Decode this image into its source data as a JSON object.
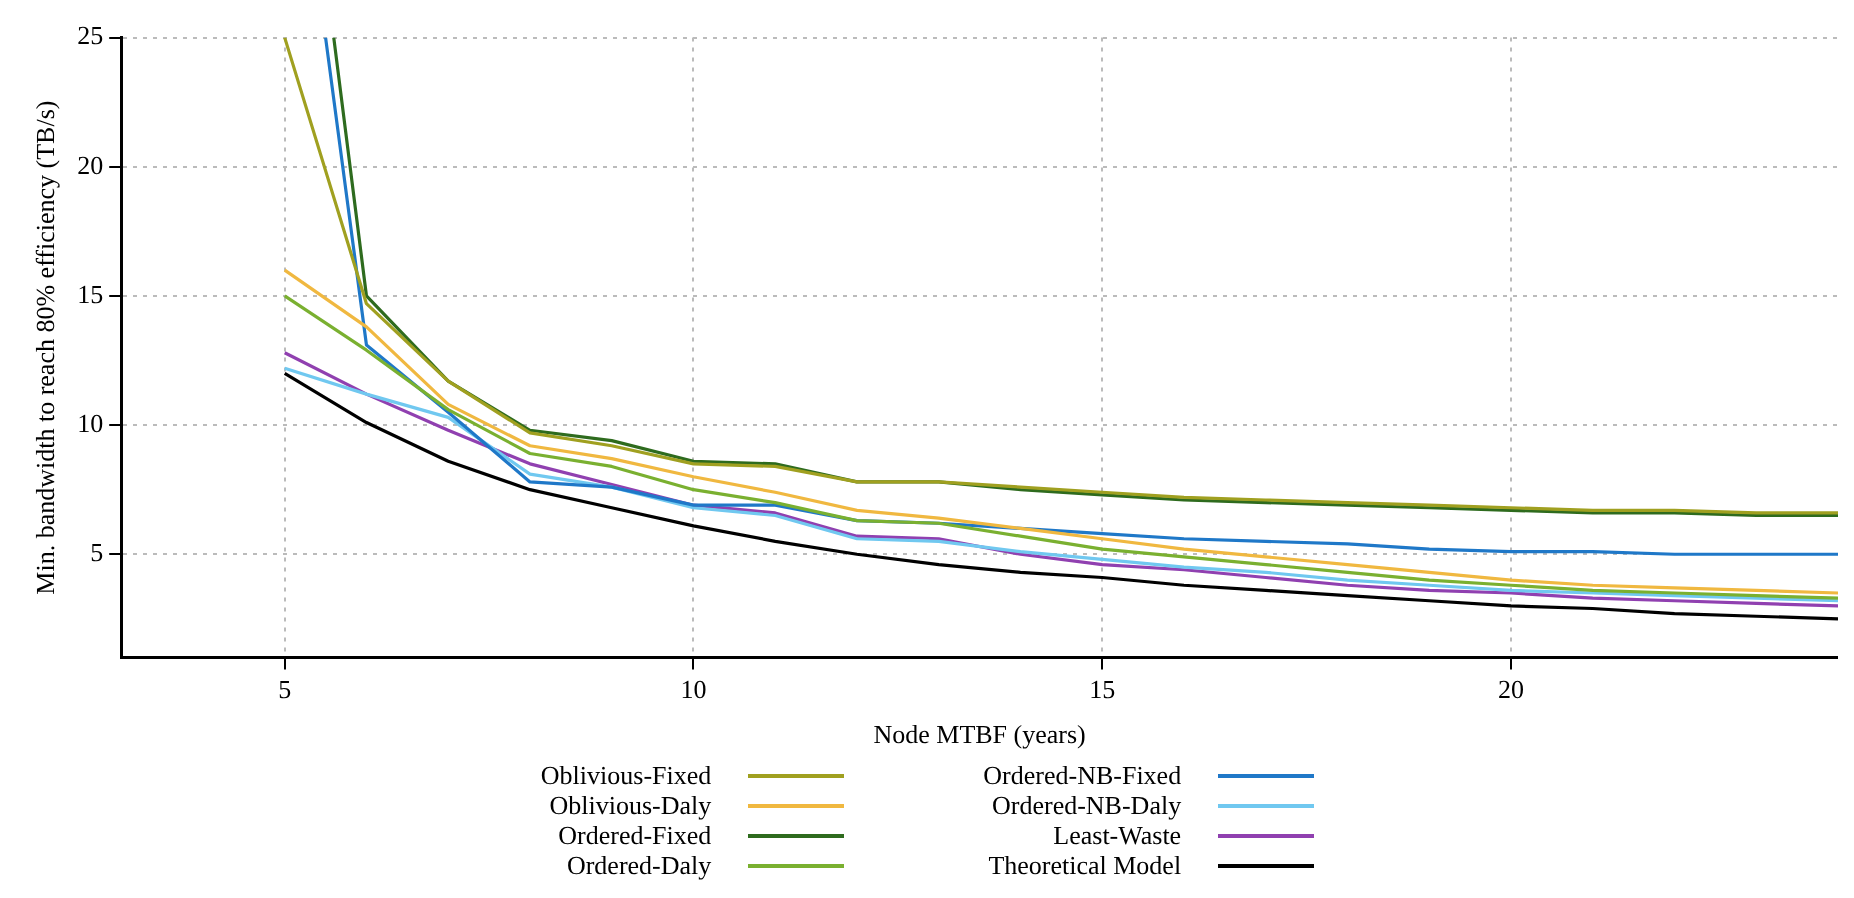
{
  "chart_data": {
    "type": "line",
    "xlabel": "Node MTBF (years)",
    "ylabel": "Min. bandwidth to reach 80% efficiency (TB/s)",
    "x": [
      5,
      6,
      7,
      8,
      9,
      10,
      11,
      12,
      13,
      14,
      15,
      16,
      17,
      18,
      19,
      20,
      21,
      22,
      23,
      24
    ],
    "xlim": [
      3,
      24
    ],
    "xticks": [
      5,
      10,
      15,
      20
    ],
    "ylim": [
      1,
      25
    ],
    "yticks": [
      5,
      10,
      15,
      20,
      25
    ],
    "grid": true,
    "legend": "bottom",
    "marker": "none",
    "line_style": "solid",
    "series": [
      {
        "name": "Oblivious-Fixed",
        "color": "#a0a020",
        "values": [
          25,
          14.7,
          11.7,
          9.7,
          9.2,
          8.5,
          8.4,
          7.8,
          7.8,
          7.6,
          7.4,
          7.2,
          7.1,
          7.0,
          6.9,
          6.8,
          6.7,
          6.7,
          6.6,
          6.6
        ]
      },
      {
        "name": "Oblivious-Daly",
        "color": "#f0b840",
        "values": [
          16.0,
          13.8,
          10.8,
          9.2,
          8.7,
          8.0,
          7.4,
          6.7,
          6.4,
          6.0,
          5.6,
          5.2,
          4.9,
          4.6,
          4.3,
          4.0,
          3.8,
          3.7,
          3.6,
          3.5
        ]
      },
      {
        "name": "Ordered-Fixed",
        "color": "#2e6b1e",
        "x": [
          5.6,
          6,
          7,
          8,
          9,
          10,
          11,
          12,
          13,
          14,
          15,
          16,
          17,
          18,
          19,
          20,
          21,
          22,
          23,
          24
        ],
        "values": [
          25,
          15,
          11.7,
          9.8,
          9.4,
          8.6,
          8.5,
          7.8,
          7.8,
          7.5,
          7.3,
          7.1,
          7.0,
          6.9,
          6.8,
          6.7,
          6.6,
          6.6,
          6.5,
          6.5
        ]
      },
      {
        "name": "Ordered-Daly",
        "color": "#7ab030",
        "values": [
          15.0,
          12.9,
          10.6,
          8.9,
          8.4,
          7.5,
          7.0,
          6.3,
          6.2,
          5.7,
          5.2,
          4.9,
          4.6,
          4.3,
          4.0,
          3.8,
          3.6,
          3.5,
          3.4,
          3.3
        ]
      },
      {
        "name": "Ordered-NB-Fixed",
        "color": "#1f78c8",
        "x": [
          5.5,
          6,
          7,
          8,
          9,
          10,
          11,
          12,
          13,
          14,
          15,
          16,
          17,
          18,
          19,
          20,
          21,
          22,
          23,
          24
        ],
        "values": [
          25,
          13.1,
          10.5,
          7.8,
          7.6,
          6.9,
          6.9,
          6.3,
          6.2,
          6.0,
          5.8,
          5.6,
          5.5,
          5.4,
          5.2,
          5.1,
          5.1,
          5.0,
          5.0,
          5.0
        ]
      },
      {
        "name": "Ordered-NB-Daly",
        "color": "#70c8f0",
        "values": [
          12.2,
          11.2,
          10.3,
          8.1,
          7.6,
          6.8,
          6.5,
          5.6,
          5.5,
          5.1,
          4.8,
          4.5,
          4.3,
          4.0,
          3.8,
          3.6,
          3.5,
          3.4,
          3.3,
          3.2
        ]
      },
      {
        "name": "Least-Waste",
        "color": "#9040b0",
        "values": [
          12.8,
          11.2,
          9.8,
          8.5,
          7.7,
          6.9,
          6.6,
          5.7,
          5.6,
          5.0,
          4.6,
          4.4,
          4.1,
          3.8,
          3.6,
          3.5,
          3.3,
          3.2,
          3.1,
          3.0
        ]
      },
      {
        "name": "Theoretical Model",
        "color": "#000000",
        "values": [
          12.0,
          10.1,
          8.6,
          7.5,
          6.8,
          6.1,
          5.5,
          5.0,
          4.6,
          4.3,
          4.1,
          3.8,
          3.6,
          3.4,
          3.2,
          3.0,
          2.9,
          2.7,
          2.6,
          2.5
        ]
      }
    ]
  }
}
